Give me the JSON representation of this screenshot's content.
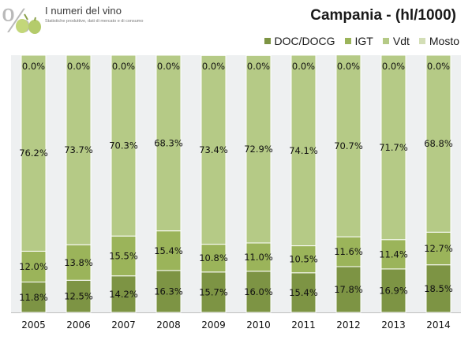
{
  "header": {
    "brand_title": "I numeri del vino",
    "brand_tagline": "Statistiche produttive, dati di mercato e di consumo"
  },
  "colors": {
    "DOC/DOCG": "#7d9444",
    "IGT": "#9bb45a",
    "Vdt": "#b5ca86",
    "Mosto": "#d3deb6",
    "background_band": "#eef0f1"
  },
  "chart_data": {
    "type": "bar",
    "stacked": true,
    "percent": true,
    "title": "Campania - (hl/1000)",
    "xlabel": "",
    "ylabel": "",
    "ylim": [
      0,
      100
    ],
    "legend_position": "top-right",
    "grid": false,
    "categories": [
      "2005",
      "2006",
      "2007",
      "2008",
      "2009",
      "2010",
      "2011",
      "2012",
      "2013",
      "2014"
    ],
    "series": [
      {
        "name": "DOC/DOCG",
        "values": [
          11.8,
          12.5,
          14.2,
          16.3,
          15.7,
          16.0,
          15.4,
          17.8,
          16.9,
          18.5
        ],
        "labels": [
          "11.8%",
          "12.5%",
          "14.2%",
          "16.3%",
          "15.7%",
          "16.0%",
          "15.4%",
          "17.8%",
          "16.9%",
          "18.5%"
        ]
      },
      {
        "name": "IGT",
        "values": [
          12.0,
          13.8,
          15.5,
          15.4,
          10.8,
          11.0,
          10.5,
          11.6,
          11.4,
          12.7
        ],
        "labels": [
          "12.0%",
          "13.8%",
          "15.5%",
          "15.4%",
          "10.8%",
          "11.0%",
          "10.5%",
          "11.6%",
          "11.4%",
          "12.7%"
        ]
      },
      {
        "name": "Vdt",
        "values": [
          76.2,
          73.7,
          70.3,
          68.3,
          73.4,
          72.9,
          74.1,
          70.7,
          71.7,
          68.8
        ],
        "labels": [
          "76.2%",
          "73.7%",
          "70.3%",
          "68.3%",
          "73.4%",
          "72.9%",
          "74.1%",
          "70.7%",
          "71.7%",
          "68.8%"
        ]
      },
      {
        "name": "Mosto",
        "values": [
          0.0,
          0.0,
          0.0,
          0.0,
          0.0,
          0.0,
          0.0,
          0.0,
          0.0,
          0.0
        ],
        "labels": [
          "0.0%",
          "0.0%",
          "0.0%",
          "0.0%",
          "0.0%",
          "0.0%",
          "0.0%",
          "0.0%",
          "0.0%",
          "0.0%"
        ]
      }
    ]
  }
}
